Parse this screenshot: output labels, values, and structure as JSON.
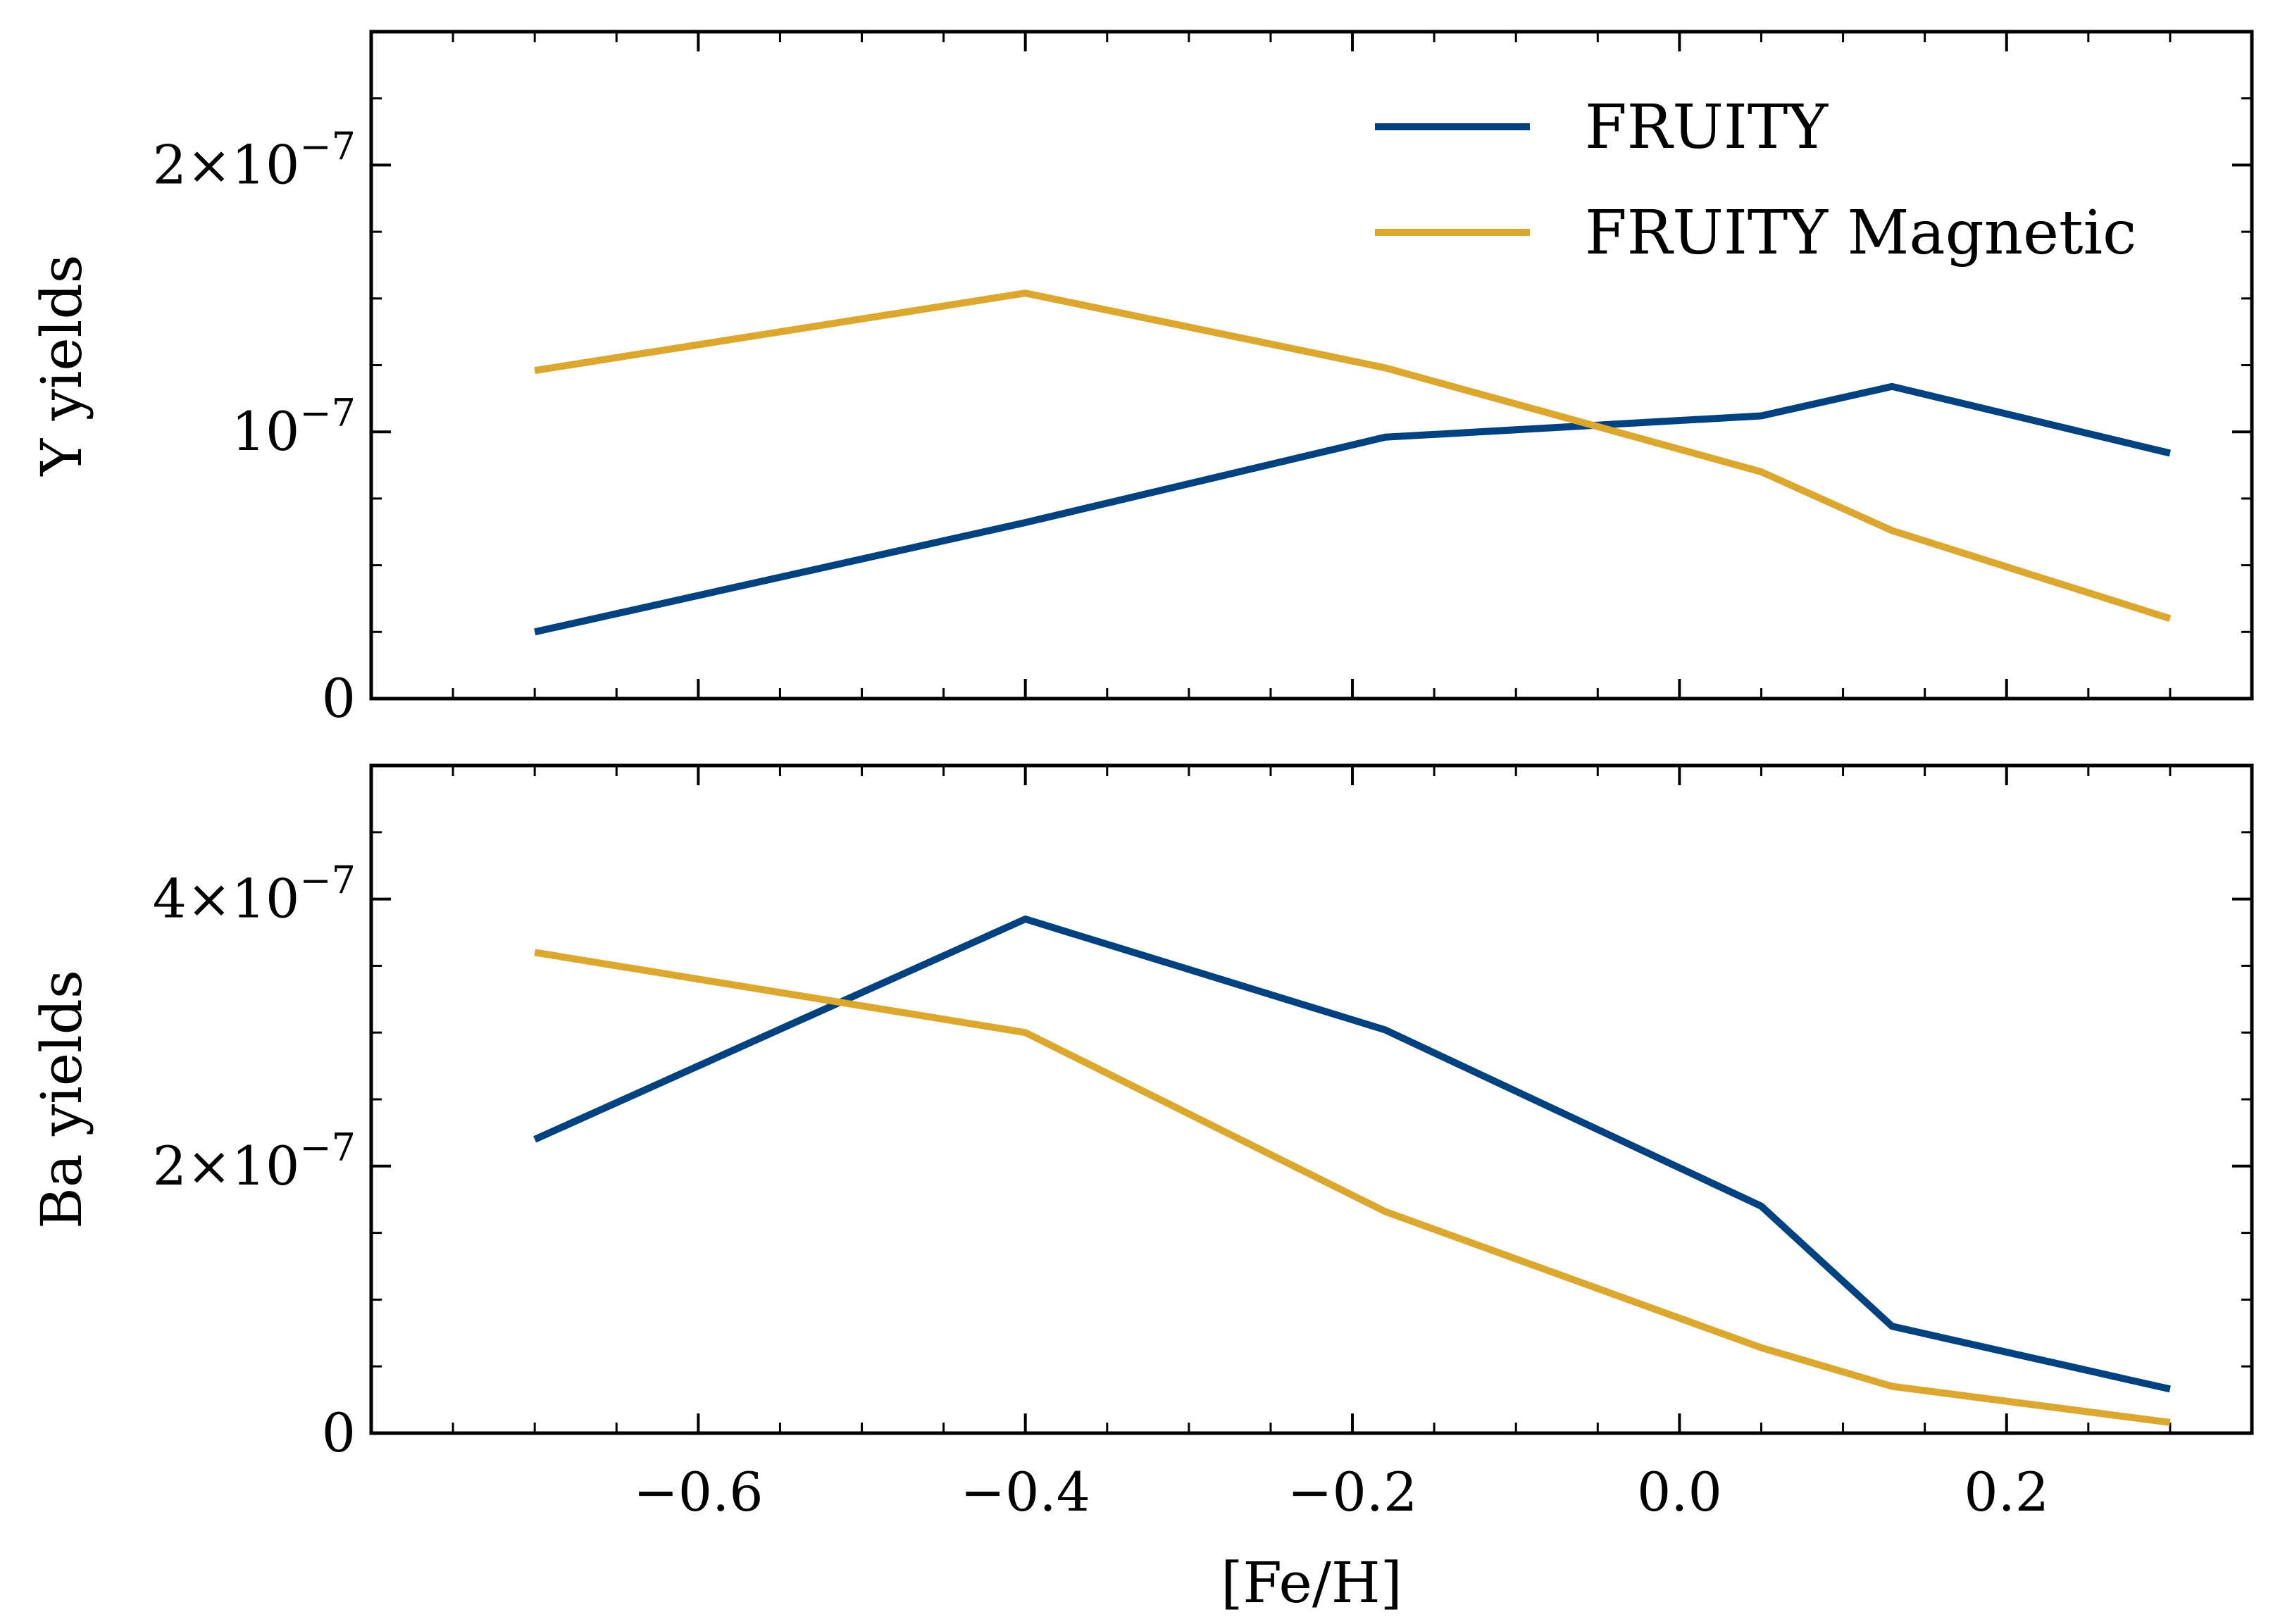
{
  "chart_data": [
    {
      "type": "line",
      "panel": "top",
      "ylabel": "Y yields",
      "xlabel": "",
      "x": [
        -0.7,
        -0.4,
        -0.18,
        0.05,
        0.13,
        0.3
      ],
      "ylim": [
        0,
        2.5e-07
      ],
      "xlim": [
        -0.8,
        0.35
      ],
      "xticks": [
        -0.6,
        -0.4,
        -0.2,
        0.0,
        0.2
      ],
      "yticks": [
        {
          "value": 0,
          "base": "0",
          "exp": ""
        },
        {
          "value": 1e-07,
          "base": "10",
          "exp": "−7"
        },
        {
          "value": 2e-07,
          "base": "2×10",
          "exp": "−7"
        }
      ],
      "series": [
        {
          "name": "FRUITY",
          "color": "#00427f",
          "values": [
            2.5e-08,
            6.6e-08,
            9.8e-08,
            1.06e-07,
            1.17e-07,
            9.2e-08
          ]
        },
        {
          "name": "FRUITY Magnetic",
          "color": "#dba72e",
          "values": [
            1.23e-07,
            1.52e-07,
            1.24e-07,
            8.5e-08,
            6.3e-08,
            3e-08
          ]
        }
      ],
      "legend": "top-right",
      "grid": false
    },
    {
      "type": "line",
      "panel": "bottom",
      "ylabel": "Ba yields",
      "xlabel": "[Fe/H]",
      "x": [
        -0.7,
        -0.4,
        -0.18,
        0.05,
        0.13,
        0.3
      ],
      "ylim": [
        0,
        5e-07
      ],
      "xlim": [
        -0.8,
        0.35
      ],
      "xticks": [
        -0.6,
        -0.4,
        -0.2,
        0.0,
        0.2
      ],
      "xticklabels": [
        "−0.6",
        "−0.4",
        "−0.2",
        "0.0",
        "0.2"
      ],
      "yticks": [
        {
          "value": 0,
          "base": "0",
          "exp": ""
        },
        {
          "value": 2e-07,
          "base": "2×10",
          "exp": "−7"
        },
        {
          "value": 4e-07,
          "base": "4×10",
          "exp": "−7"
        }
      ],
      "series": [
        {
          "name": "FRUITY",
          "color": "#00427f",
          "values": [
            2.2e-07,
            3.85e-07,
            3.02e-07,
            1.7e-07,
            8e-08,
            3.3e-08
          ]
        },
        {
          "name": "FRUITY Magnetic",
          "color": "#dba72e",
          "values": [
            3.6e-07,
            3e-07,
            1.66e-07,
            6.4e-08,
            3.5e-08,
            8e-09
          ]
        }
      ],
      "grid": false
    }
  ]
}
